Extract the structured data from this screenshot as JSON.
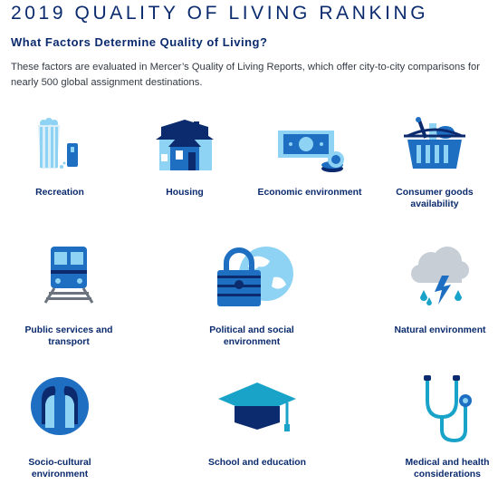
{
  "header": {
    "title": "2019 QUALITY OF LIVING RANKING",
    "subtitle": "What Factors Determine Quality of Living?",
    "intro": "These factors are evaluated in Mercer’s Quality of Living Reports, which offer city-to-city comparisons for nearly 500 global assignment destinations."
  },
  "factors": [
    {
      "label": "Recreation",
      "icon": "popcorn-icon"
    },
    {
      "label": "Housing",
      "icon": "house-icon"
    },
    {
      "label": "Economic environment",
      "icon": "banknote-coins-icon"
    },
    {
      "label": "Consumer goods availability",
      "icon": "shopping-basket-icon"
    },
    {
      "label": "Public services and transport",
      "icon": "train-icon"
    },
    {
      "label": "Political and social environment",
      "icon": "padlock-globe-icon"
    },
    {
      "label": "Natural environment",
      "icon": "storm-cloud-icon"
    },
    {
      "label": "Socio-cultural environment",
      "icon": "two-faces-icon"
    },
    {
      "label": "School and education",
      "icon": "graduation-cap-icon"
    },
    {
      "label": "Medical and health considerations",
      "icon": "stethoscope-icon"
    }
  ],
  "colors": {
    "navy": "#0b2b6e",
    "blue": "#1e6fc2",
    "light_blue": "#8fd3f4",
    "teal": "#1aa3c9",
    "grey": "#c7ced6"
  }
}
